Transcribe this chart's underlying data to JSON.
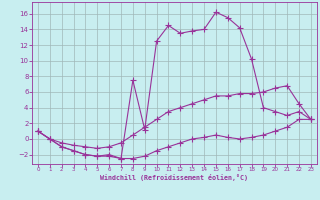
{
  "bg_color": "#c8eef0",
  "grid_color": "#a0b8b8",
  "line_color": "#993399",
  "xlabel": "Windchill (Refroidissement éolien,°C)",
  "x_ticks": [
    0,
    1,
    2,
    3,
    4,
    5,
    6,
    7,
    8,
    9,
    10,
    11,
    12,
    13,
    14,
    15,
    16,
    17,
    18,
    19,
    20,
    21,
    22,
    23
  ],
  "y_ticks": [
    -2,
    0,
    2,
    4,
    6,
    8,
    10,
    12,
    14,
    16
  ],
  "ylim": [
    -3.2,
    17.5
  ],
  "xlim": [
    -0.5,
    23.5
  ],
  "curve1_y": [
    1,
    0,
    -1,
    -1.5,
    -2,
    -2.2,
    -2.2,
    -2.5,
    -2.5,
    -2.2,
    -1.5,
    -1.0,
    -0.5,
    0.0,
    0.2,
    0.5,
    0.2,
    0.0,
    0.2,
    0.5,
    1.0,
    1.5,
    2.5,
    2.5
  ],
  "curve2_y": [
    1,
    0,
    -0.5,
    -0.8,
    -1.0,
    -1.2,
    -1.0,
    -0.5,
    0.5,
    1.5,
    2.5,
    3.5,
    4.0,
    4.5,
    5.0,
    5.5,
    5.5,
    5.8,
    5.8,
    6.0,
    6.5,
    6.8,
    4.5,
    2.5
  ],
  "curve3_y": [
    1,
    0,
    -1,
    -1.5,
    -2,
    -2.2,
    -2.0,
    -2.5,
    7.5,
    1.2,
    12.5,
    14.5,
    13.5,
    13.8,
    14.0,
    16.2,
    15.5,
    14.2,
    10.2,
    4.0,
    3.5,
    3.0,
    3.5,
    2.5
  ]
}
